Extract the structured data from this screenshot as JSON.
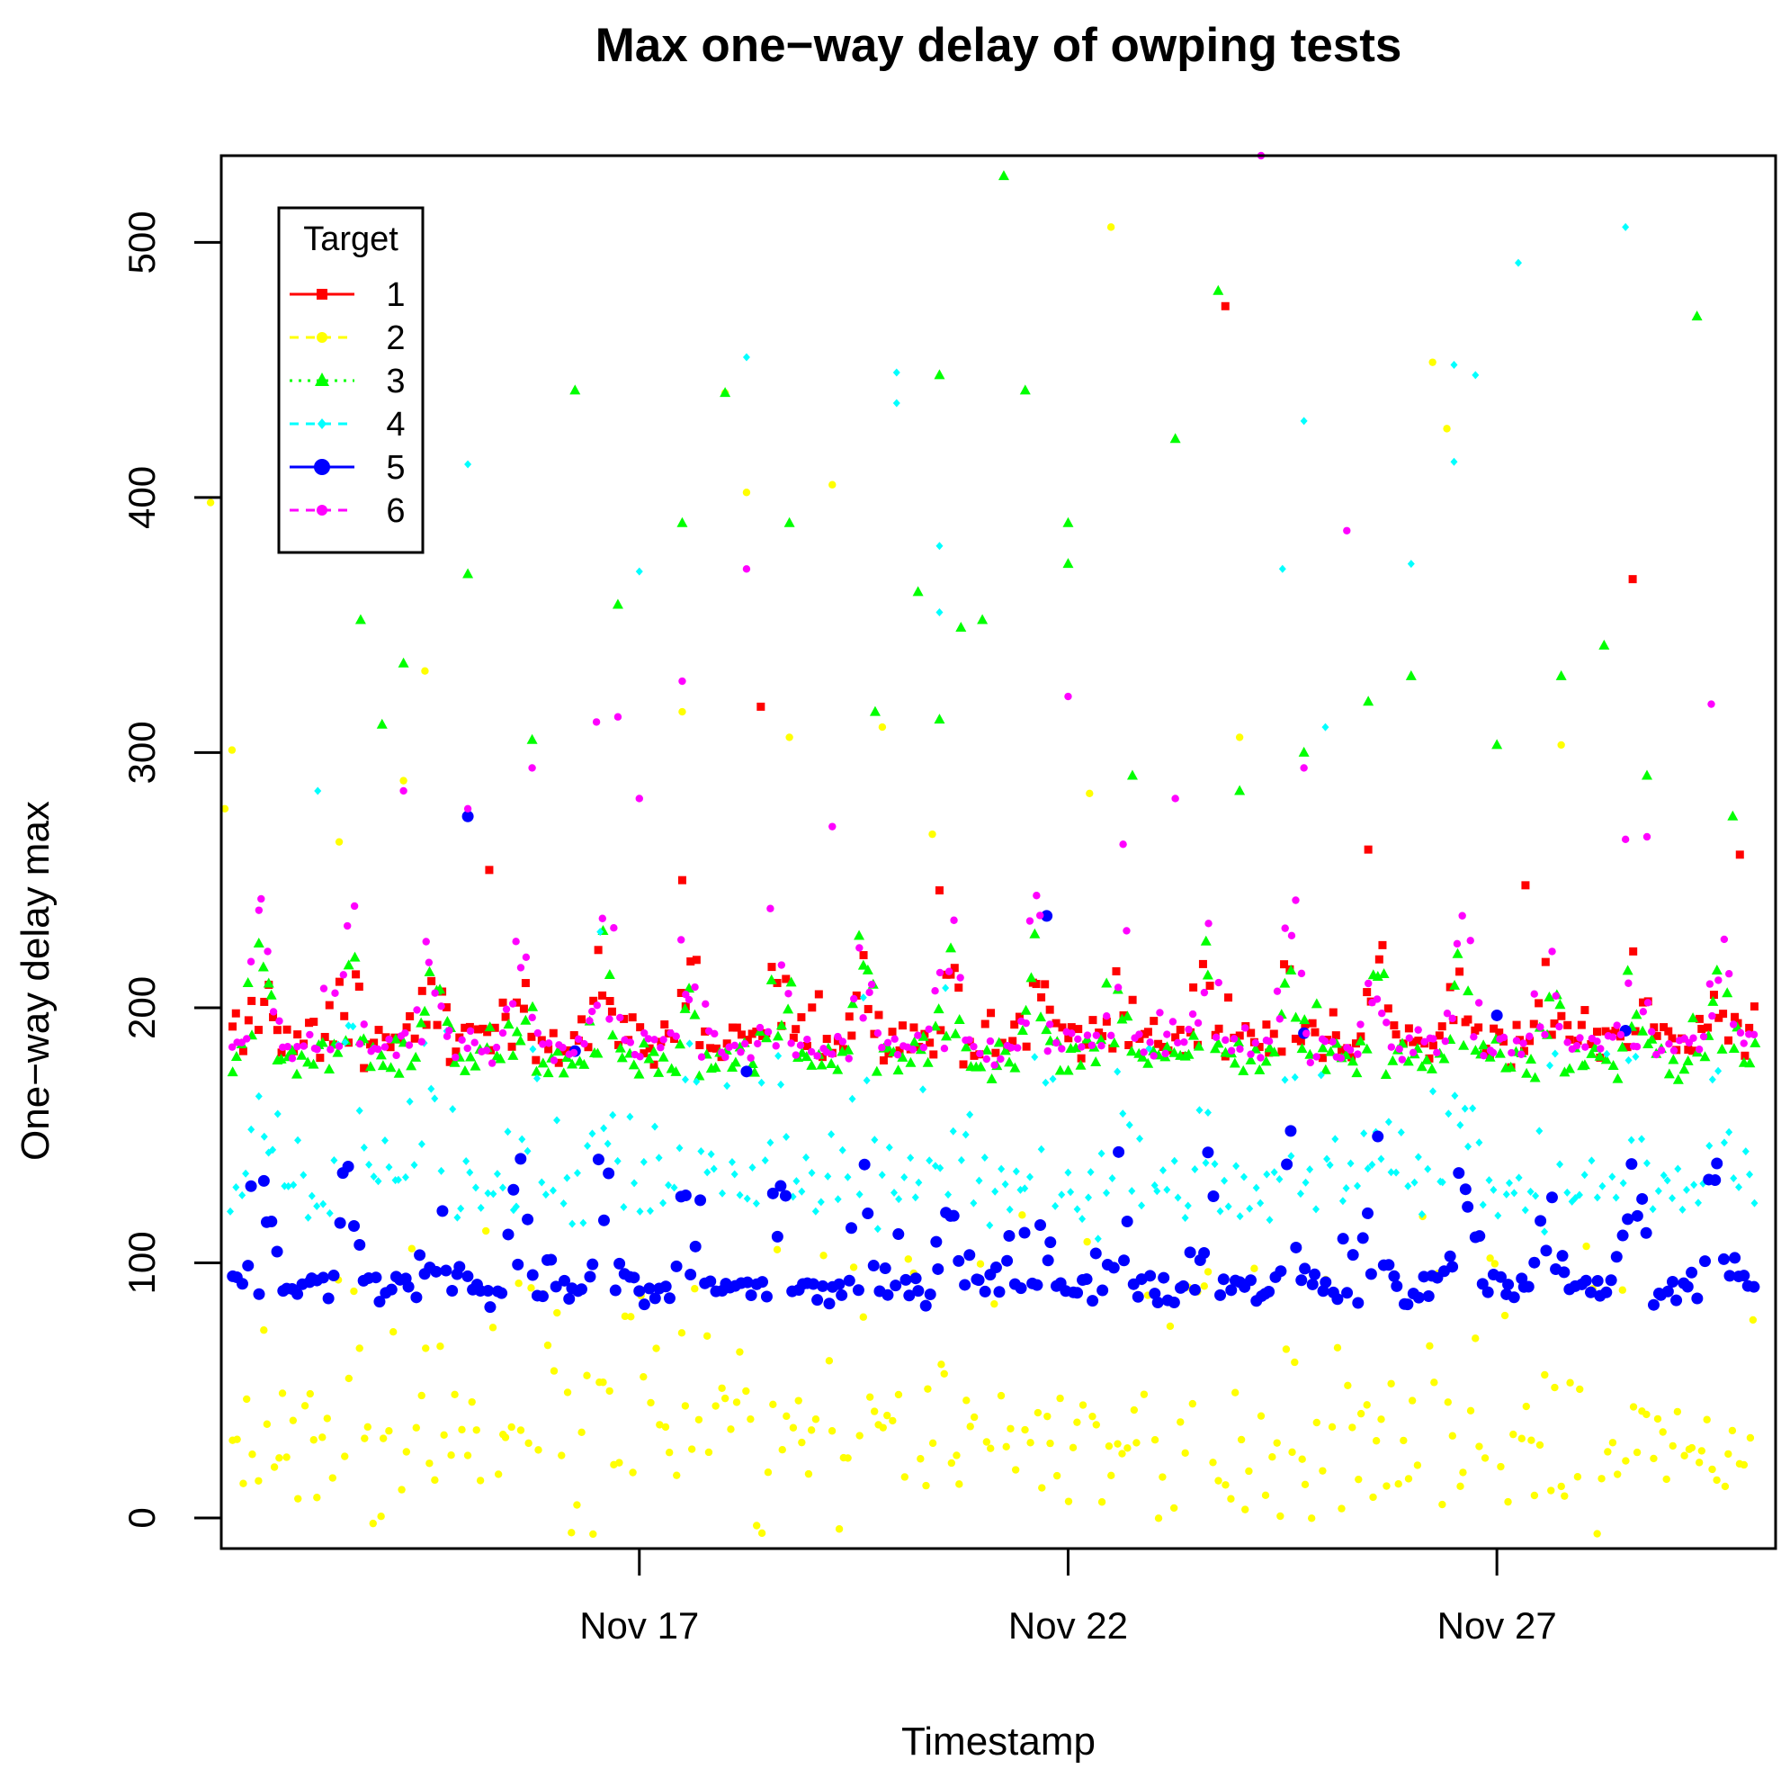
{
  "chart_data": {
    "type": "scatter",
    "title": "Max one−way delay of owping tests",
    "xlabel": "Timestamp",
    "ylabel": "One−way delay max",
    "x_axis": {
      "type": "date",
      "range": [
        "2014-11-12T03:00",
        "2014-11-30T06:00"
      ],
      "ticks": [
        {
          "value": "2014-11-17",
          "label": "Nov 17"
        },
        {
          "value": "2014-11-22",
          "label": "Nov 22"
        },
        {
          "value": "2014-11-27",
          "label": "Nov 27"
        }
      ]
    },
    "y_axis": {
      "range": [
        -12,
        534
      ],
      "ticks": [
        {
          "value": 0,
          "label": "0"
        },
        {
          "value": 100,
          "label": "100"
        },
        {
          "value": 200,
          "label": "200"
        },
        {
          "value": 300,
          "label": "300"
        },
        {
          "value": 400,
          "label": "400"
        },
        {
          "value": 500,
          "label": "500"
        }
      ]
    },
    "grid": false,
    "legend": {
      "title": "Target",
      "placement": "top-left",
      "entries": [
        {
          "label": "1",
          "color": "#ff0000",
          "marker": "square",
          "line": "solid"
        },
        {
          "label": "2",
          "color": "#ffff00",
          "marker": "circle",
          "line": "dashed"
        },
        {
          "label": "3",
          "color": "#00ff00",
          "marker": "triangle",
          "line": "dotted"
        },
        {
          "label": "4",
          "color": "#00ffff",
          "marker": "diamond",
          "line": "dashed"
        },
        {
          "label": "5",
          "color": "#0000ff",
          "marker": "circle-large",
          "line": "solid"
        },
        {
          "label": "6",
          "color": "#ff00ff",
          "marker": "circle",
          "line": "dashed"
        }
      ]
    },
    "series": [
      {
        "name": "1",
        "color": "#ff0000",
        "marker": "square",
        "x_start": "2014-11-12T06:00",
        "x_end": "2014-11-30T00:00",
        "baseline": 188,
        "spread": 16,
        "peak_amp": 35,
        "jitter_pct": 0.04,
        "outliers": [
          [
            "2014-11-23T20:00",
            475
          ],
          [
            "2014-11-28T14:00",
            368
          ],
          [
            "2014-11-18T10:00",
            318
          ],
          [
            "2014-11-29T20:00",
            260
          ],
          [
            "2014-11-17T12:00",
            250
          ],
          [
            "2014-11-25T12:00",
            262
          ],
          [
            "2014-11-15T06:00",
            254
          ],
          [
            "2014-11-20T12:00",
            246
          ],
          [
            "2014-11-27T08:00",
            248
          ]
        ]
      },
      {
        "name": "2",
        "color": "#ffff00",
        "marker": "circle",
        "x_start": "2014-11-12T06:00",
        "x_end": "2014-11-30T00:00",
        "baseline": 28,
        "spread": 38,
        "peak_amp": 10,
        "jitter_pct": 0.4,
        "outliers": [
          [
            "2014-11-12T06:00",
            301
          ],
          [
            "2014-11-12T04:00",
            278
          ],
          [
            "2014-11-13T12:00",
            265
          ],
          [
            "2014-11-14T12:00",
            332
          ],
          [
            "2014-11-14T06:00",
            289
          ],
          [
            "2014-11-18T00:00",
            441
          ],
          [
            "2014-11-18T06:00",
            402
          ],
          [
            "2014-11-19T06:00",
            405
          ],
          [
            "2014-11-19T20:00",
            310
          ],
          [
            "2014-11-22T12:00",
            506
          ],
          [
            "2014-11-22T06:00",
            284
          ],
          [
            "2014-11-24T00:00",
            306
          ],
          [
            "2014-11-27T18:00",
            303
          ],
          [
            "2014-11-26T06:00",
            453
          ],
          [
            "2014-11-26T10:00",
            427
          ],
          [
            "2014-11-17T12:00",
            316
          ],
          [
            "2014-11-18T18:00",
            306
          ],
          [
            "2014-11-12T00:00",
            398
          ],
          [
            "2014-11-20T10:00",
            268
          ]
        ]
      },
      {
        "name": "3",
        "color": "#00ff00",
        "marker": "triangle",
        "x_start": "2014-11-12T06:00",
        "x_end": "2014-11-30T00:00",
        "baseline": 180,
        "spread": 12,
        "peak_amp": 50,
        "jitter_pct": 0.06,
        "outliers": [
          [
            "2014-11-21T06:00",
            526
          ],
          [
            "2014-11-23T18:00",
            481
          ],
          [
            "2014-11-29T08:00",
            471
          ],
          [
            "2014-11-20T12:00",
            448
          ],
          [
            "2014-11-18T00:00",
            441
          ],
          [
            "2014-11-16T06:00",
            442
          ],
          [
            "2014-11-21T12:00",
            442
          ],
          [
            "2014-11-23T06:00",
            423
          ],
          [
            "2014-11-22T00:00",
            390
          ],
          [
            "2014-11-17T12:00",
            390
          ],
          [
            "2014-11-18T18:00",
            390
          ],
          [
            "2014-11-15T00:00",
            370
          ],
          [
            "2014-11-22T00:00",
            374
          ],
          [
            "2014-11-20T06:00",
            363
          ],
          [
            "2014-11-14T06:00",
            335
          ],
          [
            "2014-11-13T18:00",
            352
          ],
          [
            "2014-11-20T18:00",
            349
          ],
          [
            "2014-11-21T00:00",
            352
          ],
          [
            "2014-11-25T12:00",
            320
          ],
          [
            "2014-11-28T06:00",
            342
          ],
          [
            "2014-11-27T18:00",
            330
          ],
          [
            "2014-11-26T00:00",
            330
          ],
          [
            "2014-11-16T18:00",
            358
          ],
          [
            "2014-11-15T18:00",
            305
          ],
          [
            "2014-11-14T00:00",
            311
          ],
          [
            "2014-11-20T12:00",
            313
          ],
          [
            "2014-11-19T18:00",
            316
          ],
          [
            "2014-11-22T18:00",
            291
          ],
          [
            "2014-11-24T00:00",
            285
          ],
          [
            "2014-11-24T18:00",
            300
          ],
          [
            "2014-11-27T00:00",
            303
          ],
          [
            "2014-11-28T18:00",
            291
          ],
          [
            "2014-11-29T18:00",
            275
          ]
        ]
      },
      {
        "name": "4",
        "color": "#00ffff",
        "marker": "diamond",
        "x_start": "2014-11-12T06:00",
        "x_end": "2014-11-30T00:00",
        "baseline": 130,
        "spread": 22,
        "peak_amp": 60,
        "jitter_pct": 0.35,
        "outliers": [
          [
            "2014-11-28T12:00",
            506
          ],
          [
            "2014-11-27T06:00",
            492
          ],
          [
            "2014-11-18T06:00",
            455
          ],
          [
            "2014-11-20T00:00",
            449
          ],
          [
            "2014-11-20T00:00",
            437
          ],
          [
            "2014-11-26T18:00",
            448
          ],
          [
            "2014-11-26T12:00",
            452
          ],
          [
            "2014-11-24T18:00",
            430
          ],
          [
            "2014-11-15T00:00",
            413
          ],
          [
            "2014-11-26T12:00",
            414
          ],
          [
            "2014-11-20T12:00",
            381
          ],
          [
            "2014-11-26T00:00",
            374
          ],
          [
            "2014-11-24T12:00",
            372
          ],
          [
            "2014-11-17T00:00",
            371
          ],
          [
            "2014-11-20T12:00",
            355
          ],
          [
            "2014-11-25T00:00",
            310
          ],
          [
            "2014-11-13T06:00",
            285
          ]
        ]
      },
      {
        "name": "5",
        "color": "#0000ff",
        "marker": "circle-large",
        "x_start": "2014-11-12T06:00",
        "x_end": "2014-11-30T00:00",
        "baseline": 90,
        "spread": 10,
        "peak_amp": 60,
        "jitter_pct": 0.08,
        "outliers": [
          [
            "2014-11-15T00:00",
            275
          ],
          [
            "2014-11-21T18:00",
            236
          ],
          [
            "2014-11-24T18:00",
            190
          ],
          [
            "2014-11-27T00:00",
            197
          ],
          [
            "2014-11-28T12:00",
            191
          ],
          [
            "2014-11-18T06:00",
            175
          ],
          [
            "2014-11-16T06:00",
            183
          ]
        ]
      },
      {
        "name": "6",
        "color": "#ff00ff",
        "marker": "circle",
        "x_start": "2014-11-12T06:00",
        "x_end": "2014-11-30T00:00",
        "baseline": 185,
        "spread": 10,
        "peak_amp": 70,
        "jitter_pct": 0.05,
        "outliers": [
          [
            "2014-11-24T06:00",
            534
          ],
          [
            "2014-11-25T06:00",
            387
          ],
          [
            "2014-11-18T06:00",
            372
          ],
          [
            "2014-11-22T00:00",
            322
          ],
          [
            "2014-11-29T12:00",
            319
          ],
          [
            "2014-11-17T12:00",
            328
          ],
          [
            "2014-11-16T12:00",
            312
          ],
          [
            "2014-11-16T18:00",
            314
          ],
          [
            "2014-11-17T00:00",
            282
          ],
          [
            "2014-11-15T18:00",
            294
          ],
          [
            "2014-11-23T06:00",
            282
          ],
          [
            "2014-11-24T18:00",
            294
          ],
          [
            "2014-11-14T06:00",
            285
          ],
          [
            "2014-11-19T06:00",
            271
          ],
          [
            "2014-11-15T00:00",
            278
          ],
          [
            "2014-11-28T18:00",
            267
          ],
          [
            "2014-11-28T12:00",
            266
          ]
        ]
      }
    ]
  }
}
